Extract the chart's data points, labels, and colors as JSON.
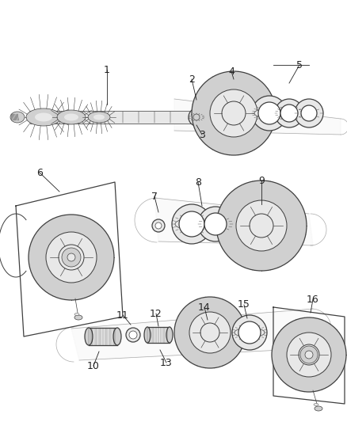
{
  "bg_color": "#ffffff",
  "line_color": "#404040",
  "fill_light": "#e8e8e8",
  "fill_mid": "#d0d0d0",
  "fill_dark": "#b8b8b8",
  "fig_width": 4.38,
  "fig_height": 5.33,
  "dpi": 100
}
